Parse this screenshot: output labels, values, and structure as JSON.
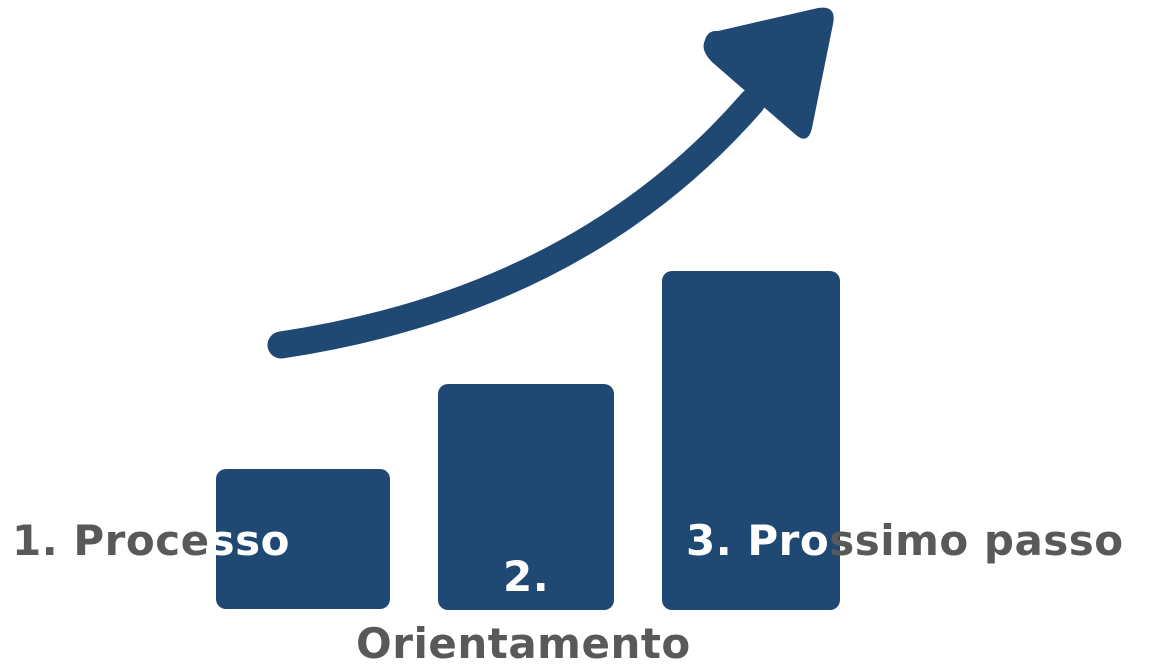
{
  "diagram": {
    "colors": {
      "shape": "#1f4872",
      "text": "#595959",
      "text_on_shape": "#ffffff",
      "background": "#ffffff"
    },
    "steps": [
      {
        "number": "1.",
        "label": "1. Processo"
      },
      {
        "number": "2.",
        "label": "Orientamento"
      },
      {
        "number": "3.",
        "label": "3. Prossimo passo"
      }
    ],
    "icons": {
      "bars": "bar-chart-icon",
      "arrow": "growth-arrow-icon"
    }
  }
}
